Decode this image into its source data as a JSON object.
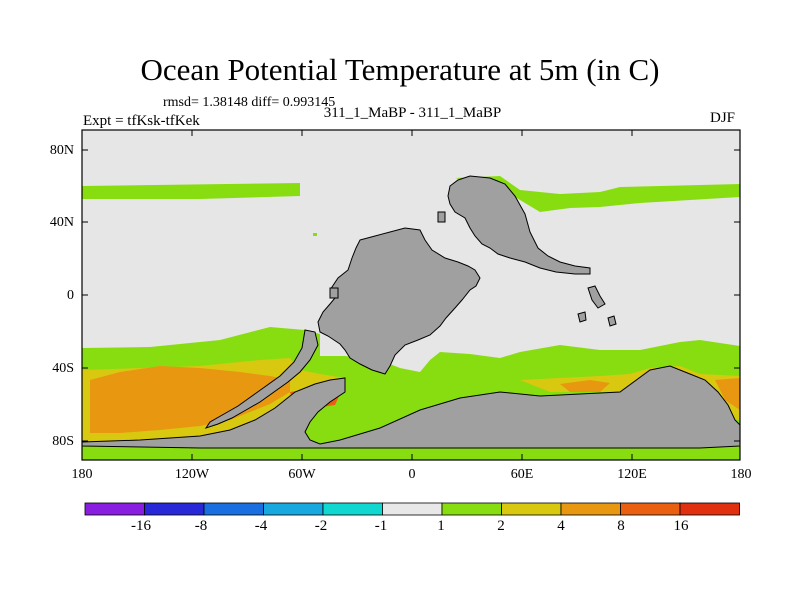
{
  "title": "Ocean Potential Temperature at 5m (in C)",
  "stats": "rmsd= 1.38148 diff= 0.993145",
  "subtitle": "311_1_MaBP - 311_1_MaBP",
  "expt": "Expt = tfKsk-tfKek",
  "season": "DJF",
  "lat_ticks": [
    "80N",
    "40N",
    "0",
    "40S",
    "80S"
  ],
  "lon_ticks": [
    "180",
    "120W",
    "60W",
    "0",
    "60E",
    "120E",
    "180"
  ],
  "colorbar": {
    "labels": [
      "-16",
      "-8",
      "-4",
      "-2",
      "-1",
      "1",
      "2",
      "4",
      "8",
      "16"
    ],
    "colors": [
      "#8a1ee0",
      "#2828d8",
      "#1a6fe0",
      "#18a8e0",
      "#10d8d0",
      "#e8e8e8",
      "#88dd10",
      "#d8c810",
      "#e89810",
      "#e86010",
      "#e03010"
    ]
  },
  "map_colors": {
    "land": "#a0a0a0",
    "near_zero": "#e6e6e6",
    "warm1": "#88dd10",
    "warm2": "#d8c810",
    "warm3": "#e89810",
    "warm4": "#e86010"
  }
}
